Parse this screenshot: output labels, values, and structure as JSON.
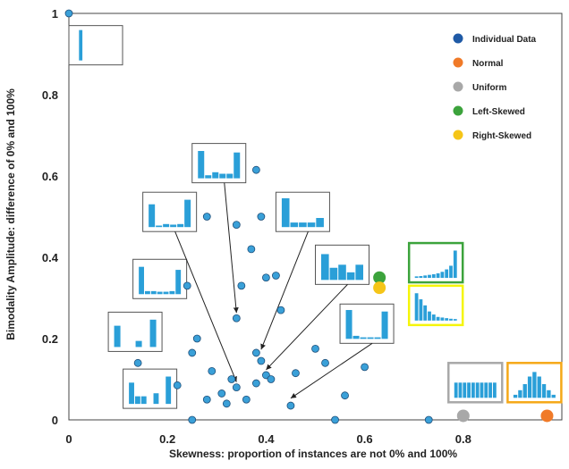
{
  "chart_data": {
    "type": "scatter",
    "xlabel": "Skewness: proportion of instances are not 0% and 100%",
    "ylabel": "Bimodality Amplitude: difference of 0% and 100%",
    "xlim": [
      0,
      1.0
    ],
    "ylim": [
      0,
      1.0
    ],
    "x_ticks": [
      "0",
      "0.2",
      "0.4",
      "0.6",
      "0.8"
    ],
    "y_ticks": [
      "0",
      "0.2",
      "0.4",
      "0.6",
      "0.8",
      "1"
    ],
    "grid": false,
    "legend_position": "top-right",
    "legend": [
      {
        "label": "Individual Data",
        "color": "#1f5aa6"
      },
      {
        "label": "Normal",
        "color": "#f07a28"
      },
      {
        "label": "Uniform",
        "color": "#a8a8a8"
      },
      {
        "label": "Left-Skewed",
        "color": "#3ca33c"
      },
      {
        "label": "Right-Skewed",
        "color": "#f5c518"
      }
    ],
    "series": [
      {
        "label": "Individual Data",
        "color": "#3aa0d8",
        "points": [
          [
            0.0,
            1.0
          ],
          [
            0.38,
            0.615
          ],
          [
            0.28,
            0.5
          ],
          [
            0.39,
            0.5
          ],
          [
            0.34,
            0.48
          ],
          [
            0.37,
            0.42
          ],
          [
            0.4,
            0.35
          ],
          [
            0.42,
            0.355
          ],
          [
            0.24,
            0.33
          ],
          [
            0.35,
            0.33
          ],
          [
            0.43,
            0.27
          ],
          [
            0.34,
            0.25
          ],
          [
            0.26,
            0.2
          ],
          [
            0.25,
            0.165
          ],
          [
            0.38,
            0.165
          ],
          [
            0.5,
            0.175
          ],
          [
            0.39,
            0.145
          ],
          [
            0.14,
            0.14
          ],
          [
            0.29,
            0.12
          ],
          [
            0.4,
            0.11
          ],
          [
            0.46,
            0.115
          ],
          [
            0.52,
            0.14
          ],
          [
            0.6,
            0.13
          ],
          [
            0.41,
            0.1
          ],
          [
            0.33,
            0.1
          ],
          [
            0.22,
            0.085
          ],
          [
            0.38,
            0.09
          ],
          [
            0.34,
            0.08
          ],
          [
            0.31,
            0.065
          ],
          [
            0.28,
            0.05
          ],
          [
            0.36,
            0.05
          ],
          [
            0.56,
            0.06
          ],
          [
            0.32,
            0.04
          ],
          [
            0.45,
            0.035
          ],
          [
            0.25,
            0.0
          ],
          [
            0.54,
            0.0
          ],
          [
            0.73,
            0.0
          ]
        ]
      },
      {
        "label": "Normal",
        "color": "#f07a28",
        "points": [
          [
            0.97,
            0.01
          ]
        ]
      },
      {
        "label": "Uniform",
        "color": "#a8a8a8",
        "points": [
          [
            0.8,
            0.01
          ]
        ]
      },
      {
        "label": "Left-Skewed",
        "color": "#3ca33c",
        "points": [
          [
            0.63,
            0.35
          ]
        ]
      },
      {
        "label": "Right-Skewed",
        "color": "#f5c518",
        "points": [
          [
            0.63,
            0.325
          ]
        ]
      }
    ],
    "insets": [
      {
        "name": "inset-top-left",
        "at": [
          0.0,
          0.97
        ],
        "bars": [
          0,
          1,
          0,
          0,
          0,
          0,
          0,
          0,
          0,
          0
        ],
        "border": "#555555",
        "arrow_to": null
      },
      {
        "name": "inset-a",
        "at": [
          0.25,
          0.68
        ],
        "bars": [
          0.9,
          0.1,
          0.2,
          0.15,
          0.15,
          0.85
        ],
        "border": "#555555",
        "arrow_to": [
          0.34,
          0.25
        ]
      },
      {
        "name": "inset-b",
        "at": [
          0.15,
          0.56
        ],
        "bars": [
          0.75,
          0.05,
          0.1,
          0.08,
          0.1,
          0.9
        ],
        "border": "#555555",
        "arrow_to": [
          0.34,
          0.08
        ]
      },
      {
        "name": "inset-c",
        "at": [
          0.42,
          0.56
        ],
        "bars": [
          0.95,
          0.15,
          0.15,
          0.15,
          0.3
        ],
        "border": "#555555",
        "arrow_to": [
          0.39,
          0.16
        ]
      },
      {
        "name": "inset-d",
        "at": [
          0.5,
          0.43
        ],
        "bars": [
          0.85,
          0.4,
          0.5,
          0.25,
          0.5
        ],
        "border": "#555555",
        "arrow_to": [
          0.4,
          0.11
        ]
      },
      {
        "name": "inset-e",
        "at": [
          0.13,
          0.395
        ],
        "bars": [
          0.9,
          0.1,
          0.1,
          0.08,
          0.08,
          0.1,
          0.8
        ],
        "border": "#555555",
        "arrow_to": null
      },
      {
        "name": "inset-f",
        "at": [
          0.55,
          0.285
        ],
        "bars": [
          0.95,
          0.1,
          0.05,
          0.05,
          0.05,
          0.9
        ],
        "border": "#555555",
        "arrow_to": [
          0.45,
          0.04
        ]
      },
      {
        "name": "inset-g",
        "at": [
          0.08,
          0.265
        ],
        "bars": [
          0.7,
          0,
          0,
          0.2,
          0,
          0.9
        ],
        "border": "#555555",
        "arrow_to": null
      },
      {
        "name": "inset-h",
        "at": [
          0.11,
          0.125
        ],
        "bars": [
          0.7,
          0.25,
          0.25,
          0,
          0.35,
          0,
          0.9
        ],
        "border": "#555555",
        "arrow_to": null
      },
      {
        "name": "inset-left-skewed",
        "at": [
          0.69,
          0.435
        ],
        "bars": [
          0.05,
          0.06,
          0.08,
          0.1,
          0.12,
          0.15,
          0.2,
          0.28,
          0.4,
          0.9
        ],
        "border": "#3ca33c",
        "arrow_to": null
      },
      {
        "name": "inset-right-skewed",
        "at": [
          0.69,
          0.33
        ],
        "bars": [
          0.9,
          0.7,
          0.5,
          0.3,
          0.2,
          0.12,
          0.1,
          0.08,
          0.06,
          0.05
        ],
        "border": "#f5f50a",
        "arrow_to": null
      },
      {
        "name": "inset-uniform",
        "at": [
          0.77,
          0.14
        ],
        "bars": [
          0.5,
          0.5,
          0.5,
          0.5,
          0.5,
          0.5,
          0.5,
          0.5,
          0.5,
          0.5
        ],
        "border": "#a8a8a8",
        "arrow_to": null
      },
      {
        "name": "inset-normal",
        "at": [
          0.89,
          0.14
        ],
        "bars": [
          0.1,
          0.25,
          0.45,
          0.7,
          0.85,
          0.7,
          0.45,
          0.25,
          0.1
        ],
        "border": "#f5a818",
        "arrow_to": null
      }
    ]
  }
}
